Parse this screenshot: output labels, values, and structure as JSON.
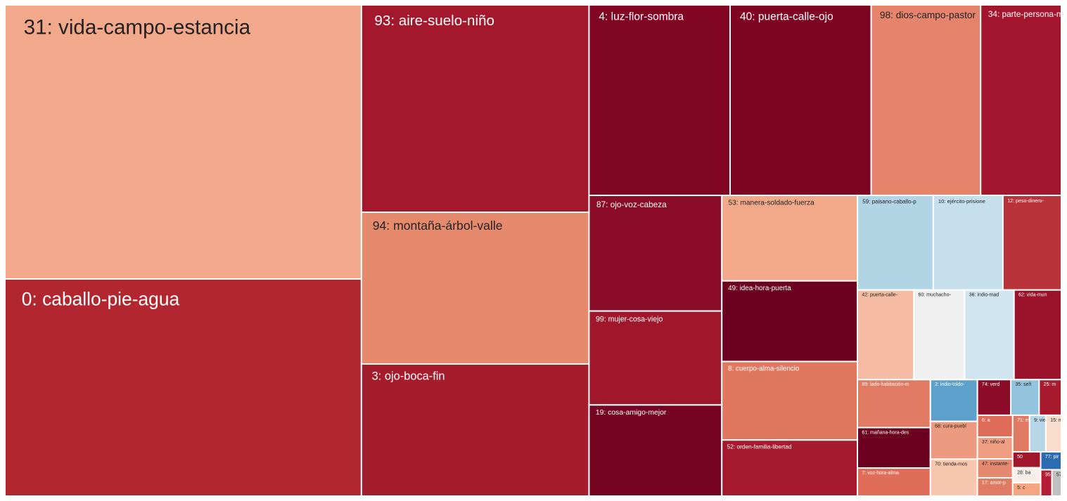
{
  "chart_data": {
    "type": "treemap",
    "categories": [
      "31: vida-campo-estancia",
      "0: caballo-pie-agua",
      "93: aire-suelo-niño",
      "94: montaña-árbol-valle",
      "3: ojo-boca-fin",
      "4: luz-flor-sombra",
      "40: puerta-calle-ojo",
      "98: dios-campo-pastor",
      "34: parte-persona-m",
      "87: ojo-voz-cabeza",
      "99: mujer-cosa-viejo",
      "19: cosa-amigo-mejor",
      "53: manera-soldado-fuerza",
      "49: idea-hora-puerta",
      "8: cuerpo-alma-silencio",
      "52: orden-familia-libertad",
      "59: paisano-caballo-p",
      "10: ejército-prisione",
      "12: peso-dinero-",
      "42: puerta-calle-",
      "60: muchacho-",
      "36: indio-mad",
      "62: vida-mun",
      "89: lado-habitación-m",
      "61: mañana-hora-des",
      "7: voz-hora-alma",
      "2: indio-toldo-",
      "68: cura-puebl",
      "70: tienda-mos",
      "74: verd",
      "35: señ",
      "25: m",
      "6: a",
      "37: niño-al",
      "47: instante-",
      "17: amor-p",
      "71: esposo",
      "9: vie",
      "15: m",
      "50",
      "28: ba",
      "5: c",
      "77: pir",
      "95: se",
      "57: es"
    ],
    "values": [
      19734,
      15635,
      9529,
      6977,
      6072,
      5427,
      5427,
      4212,
      3105,
      3102,
      2519,
      2444,
      2342,
      2208,
      2150,
      1536,
      1450,
      1330,
      1117,
      1021,
      920,
      895,
      857,
      707,
      596,
      414,
      397,
      358,
      351,
      240,
      204,
      160,
      156,
      155,
      135,
      130,
      125,
      120,
      115,
      90,
      85,
      75,
      75,
      60,
      50
    ],
    "colors": [
      "#f2a88b",
      "#b2262f",
      "#a3182d",
      "#e68a6e",
      "#a51c2d",
      "#7f0522",
      "#7d0422",
      "#e6846b",
      "#a3172e",
      "#8a0c26",
      "#a0172c",
      "#760321",
      "#f2a98a",
      "#6b0020",
      "#e07860",
      "#a51b2d",
      "#b2d5e6",
      "#c6dfec",
      "#b8333a",
      "#f6bca3",
      "#f0f0f0",
      "#d1e5f0",
      "#9a132b",
      "#e07a62",
      "#6b0021",
      "#e06d58",
      "#5da0cb",
      "#ec9a7f",
      "#f7c7b0",
      "#8b0b28",
      "#92c4de",
      "#a81b2f",
      "#de6c58",
      "#ef9e83",
      "#e58a70",
      "#e07a62",
      "#e07a62",
      "#b6d6e8",
      "#f8dccc",
      "#a0172c",
      "#f7f0ea",
      "#f4a582",
      "#2b6cb0",
      "#b51c35",
      "#c0c0c0"
    ]
  }
}
